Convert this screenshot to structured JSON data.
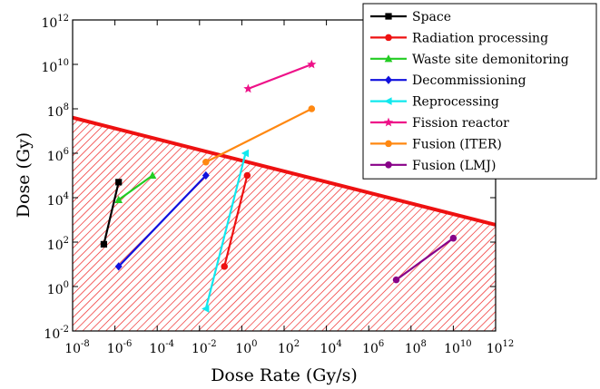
{
  "chart_data": {
    "type": "scatter",
    "xlabel": "Dose Rate (Gy/s)",
    "ylabel": "Dose (Gy)",
    "x_scale": "log",
    "y_scale": "log",
    "xlim": [
      1e-08,
      1000000000000.0
    ],
    "ylim": [
      0.01,
      1000000000000.0
    ],
    "x_ticks": [
      {
        "base": "10",
        "exp": "-8",
        "value": 1e-08
      },
      {
        "base": "10",
        "exp": "-6",
        "value": 1e-06
      },
      {
        "base": "10",
        "exp": "-4",
        "value": 0.0001
      },
      {
        "base": "10",
        "exp": "-2",
        "value": 0.01
      },
      {
        "base": "10",
        "exp": "0",
        "value": 1
      },
      {
        "base": "10",
        "exp": "2",
        "value": 100.0
      },
      {
        "base": "10",
        "exp": "4",
        "value": 10000.0
      },
      {
        "base": "10",
        "exp": "6",
        "value": 1000000.0
      },
      {
        "base": "10",
        "exp": "8",
        "value": 100000000.0
      },
      {
        "base": "10",
        "exp": "10",
        "value": 10000000000.0
      },
      {
        "base": "10",
        "exp": "12",
        "value": 1000000000000.0
      }
    ],
    "y_ticks": [
      {
        "base": "10",
        "exp": "-2",
        "value": 0.01
      },
      {
        "base": "10",
        "exp": "0",
        "value": 1
      },
      {
        "base": "10",
        "exp": "2",
        "value": 100.0
      },
      {
        "base": "10",
        "exp": "4",
        "value": 10000.0
      },
      {
        "base": "10",
        "exp": "6",
        "value": 1000000.0
      },
      {
        "base": "10",
        "exp": "8",
        "value": 100000000.0
      },
      {
        "base": "10",
        "exp": "10",
        "value": 10000000000.0
      },
      {
        "base": "10",
        "exp": "12",
        "value": 1000000000000.0
      }
    ],
    "grid": false,
    "legend_position": "top-right",
    "limit_line": {
      "color": "#ee1111",
      "points": [
        [
          1e-08,
          40000000.0
        ],
        [
          1000000000000.0,
          600.0
        ]
      ],
      "hatch_below": true
    },
    "series": [
      {
        "name": "Space",
        "color": "#000000",
        "marker": "square",
        "points": [
          [
            3e-07,
            80
          ],
          [
            1.5e-06,
            50000.0
          ]
        ]
      },
      {
        "name": "Radiation processing",
        "color": "#ee1111",
        "marker": "circle",
        "points": [
          [
            0.15,
            8
          ],
          [
            1.8,
            100000.0
          ]
        ]
      },
      {
        "name": "Waste site demonitoring",
        "color": "#22cc22",
        "marker": "triangle-up",
        "points": [
          [
            1.5e-06,
            8000.0
          ],
          [
            6e-05,
            100000.0
          ]
        ]
      },
      {
        "name": "Decommissioning",
        "color": "#1111dd",
        "marker": "diamond",
        "points": [
          [
            1.5e-06,
            8
          ],
          [
            0.02,
            100000.0
          ]
        ]
      },
      {
        "name": "Reprocessing",
        "color": "#11e8ee",
        "marker": "triangle-left",
        "points": [
          [
            0.02,
            0.1
          ],
          [
            1.5,
            1000000.0
          ]
        ]
      },
      {
        "name": "Fission reactor",
        "color": "#ee1188",
        "marker": "star",
        "points": [
          [
            2,
            800000000.0
          ],
          [
            2000.0,
            10000000000.0
          ]
        ]
      },
      {
        "name": "Fusion (ITER)",
        "color": "#ff8811",
        "marker": "circle",
        "points": [
          [
            0.02,
            400000.0
          ],
          [
            2000.0,
            100000000.0
          ]
        ]
      },
      {
        "name": "Fusion (LMJ)",
        "color": "#880088",
        "marker": "circle",
        "points": [
          [
            20000000.0,
            2
          ],
          [
            10000000000.0,
            150.0
          ]
        ]
      }
    ]
  }
}
